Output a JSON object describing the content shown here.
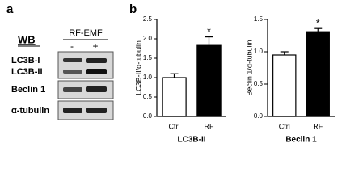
{
  "blot": {
    "label": "a",
    "method": "WB",
    "treatment": "RF-EMF",
    "lanes": [
      "-",
      "+"
    ],
    "rows": [
      "LC3B-I",
      "LC3B-II",
      "Beclin 1",
      "α-tubulin"
    ]
  },
  "panel_b_label": "b",
  "chart_data": [
    {
      "type": "bar",
      "ylabel": "LC3B-II/α-tubulin",
      "xlabel": "LC3B-II",
      "categories": [
        "Ctrl",
        "RF"
      ],
      "values": [
        1.0,
        1.83
      ],
      "errors": [
        0.1,
        0.22
      ],
      "colors": [
        "#ffffff",
        "#000000"
      ],
      "annotations": [
        null,
        "*"
      ],
      "ylim": [
        0,
        2.5
      ],
      "yticks": [
        {
          "value": 0,
          "label": "0.0"
        },
        0.5,
        {
          "value": 1,
          "label": "1.0"
        },
        1.5,
        {
          "value": 2,
          "label": "2.0"
        },
        2.5
      ]
    },
    {
      "type": "bar",
      "ylabel": "Beclin 1/α-tubulin",
      "xlabel": "Beclin 1",
      "categories": [
        "Ctrl",
        "RF"
      ],
      "values": [
        0.95,
        1.31
      ],
      "errors": [
        0.05,
        0.05
      ],
      "colors": [
        "#ffffff",
        "#000000"
      ],
      "annotations": [
        null,
        "*"
      ],
      "ylim": [
        0,
        1.5
      ],
      "yticks": [
        {
          "value": 0,
          "label": "0.0"
        },
        0.5,
        {
          "value": 1,
          "label": "1.0"
        },
        1.5
      ]
    }
  ]
}
